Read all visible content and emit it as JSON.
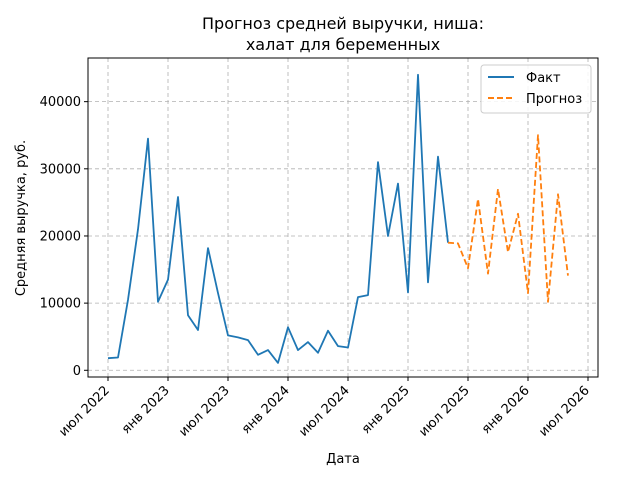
{
  "chart_data": {
    "type": "line",
    "title_line1": "Прогноз средней выручки, ниша:",
    "title_line2": "халат для беременных",
    "xlabel": "Дата",
    "ylabel": "Средняя выручка, руб.",
    "ylim": [
      -1000,
      46500
    ],
    "yticks": [
      0,
      10000,
      20000,
      30000,
      40000
    ],
    "xticks": [
      "июл 2022",
      "янв 2023",
      "июл 2023",
      "янв 2024",
      "июл 2024",
      "янв 2025",
      "июл 2025",
      "янв 2026",
      "июл 2026"
    ],
    "x_range": [
      "2022-05",
      "2026-08"
    ],
    "grid": true,
    "legend_position": "top-right",
    "series": [
      {
        "name": "Факт",
        "color": "#1f77b4",
        "style": "solid",
        "x": [
          "2022-07",
          "2022-08",
          "2022-09",
          "2022-10",
          "2022-11",
          "2022-12",
          "2023-01",
          "2023-02",
          "2023-03",
          "2023-04",
          "2023-05",
          "2023-06",
          "2023-07",
          "2023-08",
          "2023-09",
          "2023-10",
          "2023-11",
          "2023-12",
          "2024-01",
          "2024-02",
          "2024-03",
          "2024-04",
          "2024-05",
          "2024-06",
          "2024-07",
          "2024-08",
          "2024-09",
          "2024-10",
          "2024-11",
          "2024-12",
          "2025-01",
          "2025-02",
          "2025-03",
          "2025-04",
          "2025-05"
        ],
        "values": [
          1800,
          1900,
          10500,
          21000,
          34500,
          10200,
          13500,
          25800,
          8200,
          6000,
          18200,
          11500,
          5200,
          4900,
          4500,
          2300,
          3000,
          1100,
          6400,
          3000,
          4200,
          2600,
          5900,
          3600,
          3400,
          10900,
          11200,
          31000,
          20000,
          27800,
          11600,
          44000,
          13100,
          31800,
          19000
        ]
      },
      {
        "name": "Прогноз",
        "color": "#ff7f0e",
        "style": "dashed",
        "x": [
          "2025-05",
          "2025-06",
          "2025-07",
          "2025-08",
          "2025-09",
          "2025-10",
          "2025-11",
          "2025-12",
          "2026-01",
          "2026-02",
          "2026-03",
          "2026-04",
          "2026-05"
        ],
        "values": [
          19000,
          18900,
          15200,
          25500,
          14400,
          27000,
          17600,
          23300,
          11500,
          35000,
          10200,
          26200,
          14100
        ]
      }
    ]
  }
}
